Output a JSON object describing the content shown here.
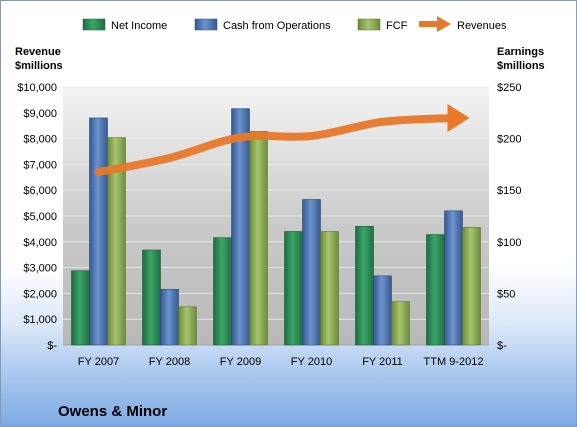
{
  "chart_data": {
    "type": "bar",
    "company": "Owens & Minor",
    "categories": [
      "FY 2007",
      "FY 2008",
      "FY 2009",
      "FY 2010",
      "FY 2011",
      "TTM 9-2012"
    ],
    "left_axis": {
      "title_line1": "Revenue",
      "title_line2": "$millions",
      "range": [
        0,
        10000
      ],
      "ticks": [
        "$-",
        "$1,000",
        "$2,000",
        "$3,000",
        "$4,000",
        "$5,000",
        "$6,000",
        "$7,000",
        "$8,000",
        "$9,000",
        "$10,000"
      ]
    },
    "right_axis": {
      "title_line1": "Earnings",
      "title_line2": "$millions",
      "range": [
        0,
        250
      ],
      "ticks": [
        "$-",
        "$50",
        "$100",
        "$150",
        "$200",
        "$250"
      ]
    },
    "series": [
      {
        "name": "Net Income",
        "axis": "right",
        "color": "#2e8b57",
        "values": [
          72,
          92,
          104,
          110,
          115,
          107
        ]
      },
      {
        "name": "Cash from Operations",
        "axis": "right",
        "color": "#4f78b8",
        "values": [
          220,
          54,
          229,
          141,
          67,
          130
        ]
      },
      {
        "name": "FCF",
        "axis": "right",
        "color": "#8aaa55",
        "values": [
          201,
          37,
          207,
          110,
          42,
          114
        ]
      },
      {
        "name": "Revenues",
        "axis": "left",
        "color": "#e8782a",
        "type": "line",
        "values": [
          6700,
          7250,
          8050,
          8100,
          8650,
          8800
        ]
      }
    ],
    "plot_background": "#cfcfcf",
    "grid": true,
    "legend_position": "top"
  }
}
